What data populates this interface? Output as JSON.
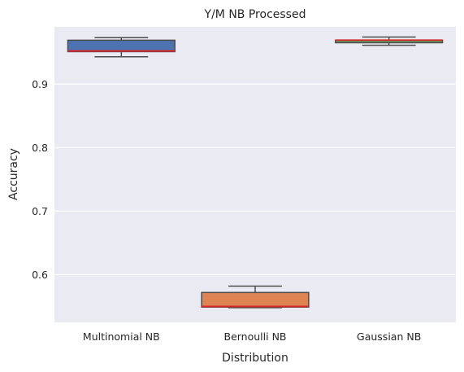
{
  "chart_data": {
    "type": "box",
    "title": "Y/M NB Processed",
    "xlabel": "Distribution",
    "ylabel": "Accuracy",
    "ylim": [
      0.525,
      0.99
    ],
    "yticks": [
      0.6,
      0.7,
      0.8,
      0.9
    ],
    "ytick_labels": [
      "0.6",
      "0.7",
      "0.8",
      "0.9"
    ],
    "grid": true,
    "background": "#eaeaf2",
    "median_color": "#d62728",
    "line_color": "#4d4d4d",
    "categories": [
      "Multinomial NB",
      "Bernoulli NB",
      "Gaussian NB"
    ],
    "boxes": [
      {
        "name": "Multinomial NB",
        "whisker_low": 0.943,
        "q1": 0.951,
        "median": 0.952,
        "q3": 0.969,
        "whisker_high": 0.973,
        "color": "#4c72b0"
      },
      {
        "name": "Bernoulli NB",
        "whisker_low": 0.548,
        "q1": 0.549,
        "median": 0.55,
        "q3": 0.572,
        "whisker_high": 0.582,
        "color": "#dd8452"
      },
      {
        "name": "Gaussian NB",
        "whisker_low": 0.961,
        "q1": 0.965,
        "median": 0.969,
        "q3": 0.969,
        "whisker_high": 0.974,
        "color": "#55a868"
      }
    ]
  }
}
